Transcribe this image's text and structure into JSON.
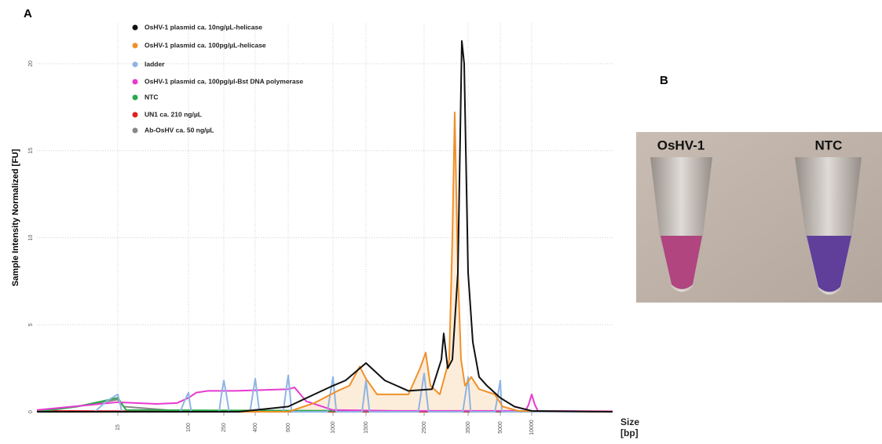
{
  "panel_labels": [
    "A",
    "B"
  ],
  "chart_data": {
    "type": "line",
    "ylabel": "Sample Intensity Normalized [FU]",
    "xlabel": "Size [bp]",
    "xlim": [
      1,
      23000
    ],
    "xticks": [
      15,
      100,
      250,
      400,
      600,
      1000,
      1500,
      2500,
      3500,
      5000,
      10000
    ],
    "ylim": [
      0,
      22.3
    ],
    "yticks": [
      0,
      5,
      10,
      15,
      20
    ],
    "grid": true,
    "series": [
      {
        "name": "OsHV-1 plasmid ca. 10ng/µL-helicase",
        "color": "#111111",
        "x": [
          1,
          320,
          600,
          832,
          1000,
          1190,
          1500,
          1824,
          2230,
          2679,
          2893,
          2946,
          3036,
          3143,
          3268,
          3357,
          3411,
          3500,
          3720,
          4012,
          4378,
          5000,
          7250,
          10000,
          23000
        ],
        "values": [
          0,
          0,
          0.3,
          1.0,
          1.5,
          1.8,
          2.8,
          1.8,
          1.2,
          1.3,
          3.0,
          4.5,
          2.5,
          3.0,
          8.0,
          21.3,
          20.0,
          8.0,
          4.0,
          2.0,
          1.5,
          0.8,
          0.3,
          0.05,
          0
        ]
      },
      {
        "name": "OsHV-1 plasmid ca. 100pg/µL-helicase",
        "color": "#f0902a",
        "fill": "#fbe8d2",
        "x": [
          1,
          600,
          832,
          1070,
          1250,
          1405,
          1500,
          1690,
          2230,
          2430,
          2536,
          2643,
          2857,
          3071,
          3143,
          3196,
          3268,
          3339,
          3429,
          3646,
          4012,
          4744,
          5375,
          7875,
          23000
        ],
        "values": [
          0,
          0,
          0.5,
          1.2,
          1.5,
          2.6,
          1.9,
          1.0,
          1.0,
          2.5,
          3.4,
          1.5,
          1.0,
          3.0,
          10.0,
          17.2,
          8.0,
          3.0,
          1.5,
          2.0,
          1.3,
          1.0,
          0.3,
          0.05,
          0
        ]
      },
      {
        "name": "ladder",
        "color": "#8fb4e3",
        "x": [
          1,
          11,
          13,
          15,
          17,
          20,
          90,
          95,
          100,
          105,
          112,
          230,
          240,
          250,
          262,
          275,
          375,
          388,
          400,
          412,
          425,
          570,
          585,
          600,
          615,
          630,
          950,
          975,
          1000,
          1025,
          1050,
          1440,
          1470,
          1500,
          1530,
          1560,
          2400,
          2450,
          2500,
          2550,
          2600,
          3380,
          3440,
          3500,
          3560,
          3620,
          4750,
          4880,
          5000,
          5120,
          5250,
          23000
        ],
        "values": [
          0,
          0,
          0.6,
          1.0,
          0.6,
          0,
          0,
          0.6,
          1.1,
          0.6,
          0,
          0,
          1.0,
          1.8,
          1.0,
          0,
          0,
          1.0,
          1.9,
          1.0,
          0,
          0,
          1.1,
          2.1,
          1.1,
          0,
          0,
          1.0,
          2.0,
          1.0,
          0,
          0,
          0.9,
          1.8,
          0.9,
          0,
          0,
          1.1,
          2.2,
          1.1,
          0,
          0,
          1.0,
          2.0,
          1.0,
          0,
          0,
          0.9,
          1.8,
          0.9,
          0,
          0
        ]
      },
      {
        "name": "OsHV-1 plasmid ca. 100pg/µl-Bst DNA polymerase",
        "color": "#e83ad0",
        "x": [
          1,
          15,
          62,
          86,
          100,
          133,
          183,
          306,
          600,
          656,
          761,
          1000,
          2000,
          9000,
          9500,
          10000,
          10500,
          11000,
          23000
        ],
        "values": [
          0.1,
          0.55,
          0.45,
          0.5,
          0.8,
          1.1,
          1.2,
          1.2,
          1.3,
          1.4,
          0.6,
          0.1,
          0.05,
          0.05,
          0.4,
          1.0,
          0.4,
          0.05,
          0.03
        ]
      },
      {
        "name": "NTC",
        "color": "#2aa84a",
        "x": [
          1,
          8,
          15,
          25,
          23000
        ],
        "values": [
          0,
          0.3,
          0.8,
          0.1,
          0
        ]
      },
      {
        "name": "UN1 ca. 210 ng/µL",
        "color": "#e02020",
        "x": [
          1,
          400,
          23000
        ],
        "values": [
          0.05,
          0.02,
          0
        ]
      },
      {
        "name": "Ab-OsHV ca. 50 ng/µL",
        "color": "#888888",
        "x": [
          1,
          10,
          15,
          22,
          100,
          23000
        ],
        "values": [
          0.05,
          0.4,
          0.7,
          0.3,
          0,
          0
        ]
      }
    ]
  },
  "photo": {
    "labels": [
      "OsHV-1",
      "NTC"
    ]
  }
}
